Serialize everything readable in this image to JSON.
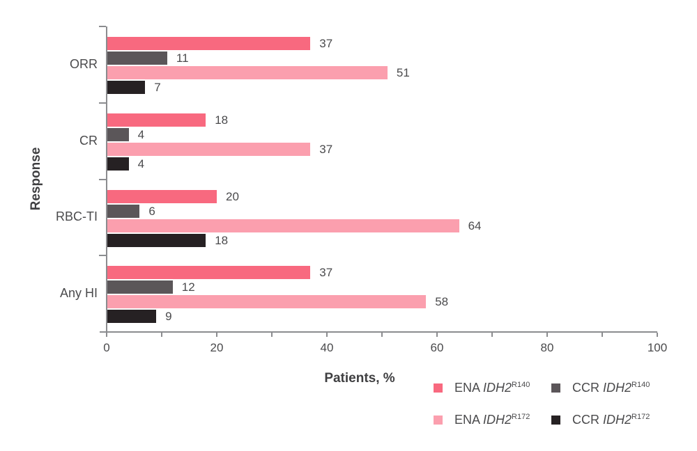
{
  "chart_data": {
    "type": "bar",
    "orientation": "horizontal",
    "title": "",
    "xlabel": "Patients, %",
    "ylabel": "Response",
    "xlim": [
      0,
      100
    ],
    "x_major_ticks": [
      0,
      20,
      40,
      60,
      80,
      100
    ],
    "x_minor_ticks": [
      10,
      30,
      50,
      70,
      90
    ],
    "grid": false,
    "legend_position": "bottom-right",
    "categories": [
      "ORR",
      "CR",
      "RBC-TI",
      "Any HI"
    ],
    "series": [
      {
        "name": "ENA IDH2^R140",
        "color": "#f8697f",
        "values": [
          37,
          18,
          20,
          37
        ]
      },
      {
        "name": "CCR IDH2^R140",
        "color": "#5b5659",
        "values": [
          11,
          4,
          6,
          12
        ]
      },
      {
        "name": "ENA IDH2^R172",
        "color": "#fb9fae",
        "values": [
          51,
          37,
          64,
          58
        ]
      },
      {
        "name": "CCR IDH2^R172",
        "color": "#262123",
        "values": [
          7,
          4,
          18,
          9
        ]
      }
    ]
  },
  "axes": {
    "x_title": "Patients, %",
    "y_title": "Response"
  },
  "legend": {
    "items": [
      {
        "label_prefix": "ENA ",
        "gene": "IDH2",
        "superscript": "R140",
        "color": "#f8697f"
      },
      {
        "label_prefix": "CCR ",
        "gene": "IDH2",
        "superscript": "R140",
        "color": "#5b5659"
      },
      {
        "label_prefix": "ENA ",
        "gene": "IDH2",
        "superscript": "R172",
        "color": "#fb9fae"
      },
      {
        "label_prefix": "CCR ",
        "gene": "IDH2",
        "superscript": "R172",
        "color": "#262123"
      }
    ]
  },
  "colors": {
    "axis": "#8b8c8f",
    "text": "#4a4a4c",
    "title_text": "#3f3f41",
    "background": "#ffffff"
  }
}
